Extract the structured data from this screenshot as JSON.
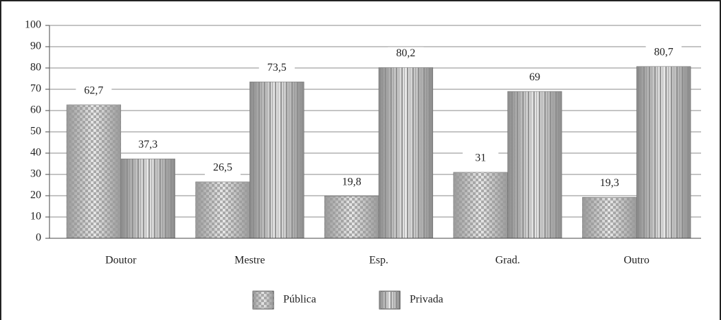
{
  "chart_data": {
    "type": "bar",
    "categories": [
      "Doutor",
      "Mestre",
      "Esp.",
      "Grad.",
      "Outro"
    ],
    "series": [
      {
        "name": "Pública",
        "color": "#9a9a9a",
        "values": [
          62.7,
          26.5,
          19.8,
          31,
          19.3
        ],
        "value_labels": [
          "62,7",
          "26,5",
          "19,8",
          "31",
          "19,3"
        ]
      },
      {
        "name": "Privada",
        "color": "#8c8c8c",
        "values": [
          37.3,
          73.5,
          80.2,
          69,
          80.7
        ],
        "value_labels": [
          "37,3",
          "73,5",
          "80,2",
          "69",
          "80,7"
        ]
      }
    ],
    "ylim": [
      0,
      100
    ],
    "yticks": [
      0,
      10,
      20,
      30,
      40,
      50,
      60,
      70,
      80,
      90,
      100
    ],
    "grid": true,
    "legend": "bottom"
  }
}
